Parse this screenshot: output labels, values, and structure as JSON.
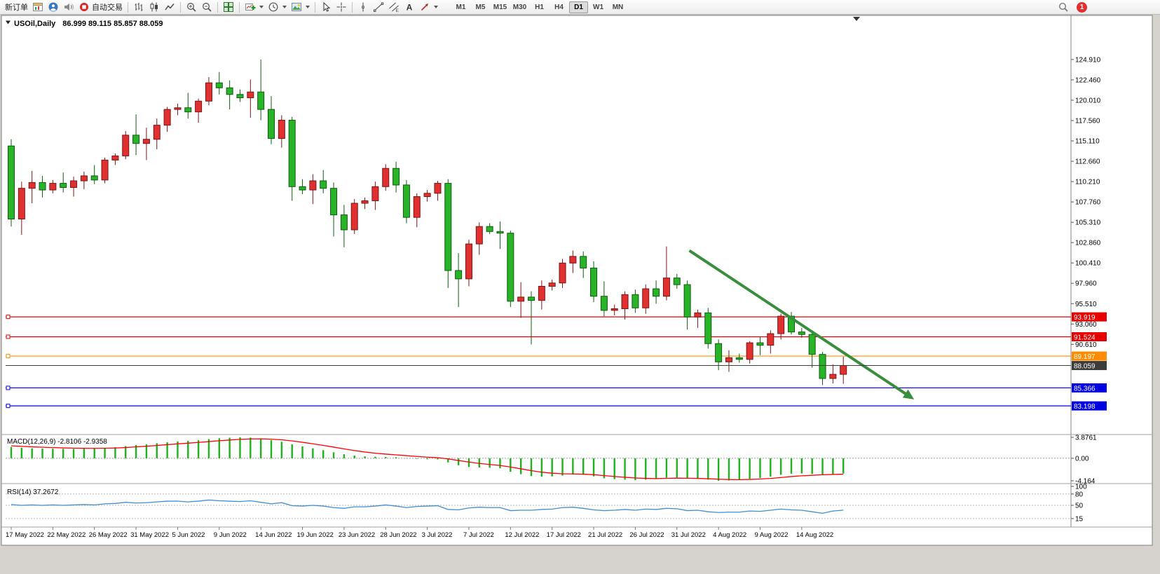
{
  "toolbar": {
    "new_order_label": "新订单",
    "autotrading_label": "自动交易",
    "timeframes": [
      "M1",
      "M5",
      "M15",
      "M30",
      "H1",
      "H4",
      "D1",
      "W1",
      "MN"
    ],
    "active_timeframe": "D1",
    "notification_count": "1",
    "icon_names": [
      "chart-window-icon",
      "profile-icon",
      "sound-icon",
      "autotrading-status-icon",
      "ohlc-bars-icon",
      "candlestick-icon",
      "line-chart-icon",
      "zoom-in-icon",
      "zoom-out-icon",
      "tile-windows-icon",
      "new-chart-icon",
      "clock-icon",
      "template-icon",
      "cursor-icon",
      "crosshair-icon",
      "vertical-line-icon",
      "trendline-icon",
      "equidistant-channel-icon",
      "text-label-icon",
      "arrows-tool-icon",
      "search-icon"
    ]
  },
  "chart": {
    "symbol_period": "USOil,Daily",
    "ohlc_text": "86.999 89.115 85.857 88.059",
    "macd_label": "MACD(12,26,9) -2.8106 -2.9358",
    "rsi_label": "RSI(14) 37.2672"
  },
  "chart_data": {
    "type": "candlestick",
    "symbol": "USOil",
    "timeframe": "Daily",
    "current": {
      "open": 86.999,
      "high": 89.115,
      "low": 85.857,
      "close": 88.059
    },
    "up_color": "#e03030",
    "down_color": "#29b329",
    "up_border": "#7a1515",
    "down_border": "#0f5c0f",
    "price_ticks": [
      "124.910",
      "122.460",
      "120.010",
      "117.560",
      "115.110",
      "112.660",
      "110.210",
      "107.760",
      "105.310",
      "102.860",
      "100.410",
      "97.960",
      "95.510",
      "93.060",
      "90.610"
    ],
    "x_labels": [
      {
        "bar": 0,
        "label": "17 May 2022"
      },
      {
        "bar": 4,
        "label": "22 May 2022"
      },
      {
        "bar": 8,
        "label": "26 May 2022"
      },
      {
        "bar": 12,
        "label": "31 May 2022"
      },
      {
        "bar": 16,
        "label": "5 Jun 2022"
      },
      {
        "bar": 20,
        "label": "9 Jun 2022"
      },
      {
        "bar": 24,
        "label": "14 Jun 2022"
      },
      {
        "bar": 28,
        "label": "19 Jun 2022"
      },
      {
        "bar": 32,
        "label": "23 Jun 2022"
      },
      {
        "bar": 36,
        "label": "28 Jun 2022"
      },
      {
        "bar": 40,
        "label": "3 Jul 2022"
      },
      {
        "bar": 44,
        "label": "7 Jul 2022"
      },
      {
        "bar": 48,
        "label": "12 Jul 2022"
      },
      {
        "bar": 52,
        "label": "17 Jul 2022"
      },
      {
        "bar": 56,
        "label": "21 Jul 2022"
      },
      {
        "bar": 60,
        "label": "26 Jul 2022"
      },
      {
        "bar": 64,
        "label": "31 Jul 2022"
      },
      {
        "bar": 68,
        "label": "4 Aug 2022"
      },
      {
        "bar": 72,
        "label": "9 Aug 2022"
      },
      {
        "bar": 76,
        "label": "14 Aug 2022"
      }
    ],
    "candles": {
      "columns": [
        "date",
        "open",
        "high",
        "low",
        "close"
      ],
      "rows": [
        [
          "17 May",
          114.5,
          115.3,
          104.8,
          105.7
        ],
        [
          "18 May",
          105.7,
          110.2,
          103.8,
          109.4
        ],
        [
          "19 May",
          109.4,
          111.5,
          107.6,
          110.1
        ],
        [
          "20 May",
          110.1,
          110.9,
          108.3,
          109.2
        ],
        [
          "22 May",
          109.2,
          110.4,
          108.8,
          110.0
        ],
        [
          "23 May",
          110.0,
          111.3,
          108.9,
          109.5
        ],
        [
          "24 May",
          109.5,
          110.8,
          108.4,
          110.3
        ],
        [
          "25 May",
          110.3,
          111.4,
          109.3,
          110.9
        ],
        [
          "26 May",
          110.9,
          112.2,
          109.9,
          110.4
        ],
        [
          "27 May",
          110.4,
          113.1,
          110.0,
          112.8
        ],
        [
          "29 May",
          112.8,
          113.6,
          112.2,
          113.3
        ],
        [
          "30 May",
          113.3,
          116.3,
          112.9,
          115.8
        ],
        [
          "31 May",
          115.8,
          118.3,
          113.4,
          114.8
        ],
        [
          "1 Jun",
          114.8,
          116.7,
          112.8,
          115.3
        ],
        [
          "2 Jun",
          115.3,
          117.8,
          114.1,
          117.0
        ],
        [
          "3 Jun",
          117.0,
          119.2,
          116.2,
          118.9
        ],
        [
          "5 Jun",
          118.9,
          119.6,
          118.2,
          119.1
        ],
        [
          "6 Jun",
          119.1,
          120.9,
          117.8,
          118.6
        ],
        [
          "7 Jun",
          118.6,
          120.2,
          117.3,
          119.9
        ],
        [
          "8 Jun",
          119.9,
          122.8,
          119.4,
          122.1
        ],
        [
          "9 Jun",
          122.1,
          123.4,
          120.7,
          121.5
        ],
        [
          "10 Jun",
          121.5,
          122.4,
          118.9,
          120.7
        ],
        [
          "12 Jun",
          120.7,
          121.3,
          119.8,
          120.3
        ],
        [
          "13 Jun",
          120.3,
          122.5,
          117.9,
          121.0
        ],
        [
          "14 Jun",
          121.0,
          124.91,
          117.6,
          118.9
        ],
        [
          "15 Jun",
          118.9,
          120.5,
          114.7,
          115.4
        ],
        [
          "16 Jun",
          115.4,
          118.2,
          114.3,
          117.6
        ],
        [
          "17 Jun",
          117.6,
          118.0,
          107.9,
          109.6
        ],
        [
          "19 Jun",
          109.6,
          110.5,
          108.7,
          109.2
        ],
        [
          "20 Jun",
          109.2,
          111.1,
          107.5,
          110.3
        ],
        [
          "21 Jun",
          110.3,
          111.6,
          108.8,
          109.4
        ],
        [
          "22 Jun",
          109.4,
          110.1,
          103.6,
          106.2
        ],
        [
          "23 Jun",
          106.2,
          107.4,
          102.3,
          104.4
        ],
        [
          "24 Jun",
          104.4,
          108.1,
          103.9,
          107.6
        ],
        [
          "26 Jun",
          107.6,
          108.3,
          106.9,
          107.9
        ],
        [
          "27 Jun",
          107.9,
          110.2,
          106.8,
          109.6
        ],
        [
          "28 Jun",
          109.6,
          112.3,
          109.1,
          111.8
        ],
        [
          "29 Jun",
          111.8,
          112.6,
          108.9,
          109.8
        ],
        [
          "30 Jun",
          109.8,
          110.4,
          105.2,
          105.9
        ],
        [
          "1 Jul",
          105.9,
          108.8,
          104.7,
          108.4
        ],
        [
          "3 Jul",
          108.4,
          109.2,
          107.8,
          108.8
        ],
        [
          "4 Jul",
          108.8,
          110.3,
          107.9,
          110.0
        ],
        [
          "5 Jul",
          110.0,
          110.5,
          97.4,
          99.5
        ],
        [
          "6 Jul",
          99.5,
          101.6,
          95.1,
          98.5
        ],
        [
          "7 Jul",
          98.5,
          103.2,
          97.6,
          102.7
        ],
        [
          "8 Jul",
          102.7,
          105.3,
          101.4,
          104.8
        ],
        [
          "10 Jul",
          104.8,
          105.2,
          103.9,
          104.2
        ],
        [
          "11 Jul",
          104.2,
          105.4,
          102.1,
          104.0
        ],
        [
          "12 Jul",
          104.0,
          104.3,
          95.1,
          95.8
        ],
        [
          "13 Jul",
          95.8,
          98.1,
          93.8,
          96.3
        ],
        [
          "14 Jul",
          96.3,
          97.0,
          90.6,
          95.9
        ],
        [
          "15 Jul",
          95.9,
          98.3,
          94.8,
          97.6
        ],
        [
          "17 Jul",
          97.6,
          98.4,
          97.1,
          98.0
        ],
        [
          "18 Jul",
          98.0,
          100.9,
          97.4,
          100.4
        ],
        [
          "19 Jul",
          100.4,
          101.9,
          99.2,
          101.2
        ],
        [
          "20 Jul",
          101.2,
          101.8,
          98.6,
          99.8
        ],
        [
          "21 Jul",
          99.8,
          100.6,
          95.7,
          96.4
        ],
        [
          "22 Jul",
          96.4,
          98.2,
          94.0,
          94.7
        ],
        [
          "24 Jul",
          94.7,
          95.4,
          94.1,
          94.9
        ],
        [
          "25 Jul",
          94.9,
          97.0,
          93.6,
          96.6
        ],
        [
          "26 Jul",
          96.6,
          97.2,
          94.4,
          95.0
        ],
        [
          "27 Jul",
          95.0,
          97.8,
          94.3,
          97.3
        ],
        [
          "28 Jul",
          97.3,
          98.3,
          95.5,
          96.4
        ],
        [
          "29 Jul",
          96.4,
          102.4,
          95.9,
          98.6
        ],
        [
          "31 Jul",
          98.6,
          99.1,
          97.3,
          97.8
        ],
        [
          "1 Aug",
          97.8,
          98.3,
          92.4,
          93.9
        ],
        [
          "2 Aug",
          93.9,
          94.8,
          92.6,
          94.4
        ],
        [
          "3 Aug",
          94.4,
          95.0,
          90.1,
          90.7
        ],
        [
          "4 Aug",
          90.7,
          91.2,
          87.5,
          88.5
        ],
        [
          "5 Aug",
          88.5,
          89.9,
          87.3,
          89.0
        ],
        [
          "7 Aug",
          89.0,
          89.5,
          88.4,
          88.8
        ],
        [
          "8 Aug",
          88.8,
          91.0,
          88.3,
          90.8
        ],
        [
          "9 Aug",
          90.8,
          91.5,
          89.3,
          90.5
        ],
        [
          "10 Aug",
          90.5,
          92.3,
          89.5,
          91.9
        ],
        [
          "11 Aug",
          91.9,
          94.3,
          91.2,
          94.0
        ],
        [
          "12 Aug",
          94.0,
          94.5,
          91.8,
          92.1
        ],
        [
          "14 Aug",
          92.1,
          92.6,
          91.4,
          91.8
        ],
        [
          "15 Aug",
          91.8,
          92.0,
          87.8,
          89.4
        ],
        [
          "16 Aug",
          89.4,
          89.7,
          85.7,
          86.5
        ],
        [
          "17 Aug",
          86.5,
          88.2,
          85.9,
          87.0
        ],
        [
          "18 Aug",
          86.999,
          89.115,
          85.857,
          88.059
        ]
      ]
    },
    "hlines": [
      {
        "price": 93.919,
        "label": "93.919",
        "color": "#e60000"
      },
      {
        "price": 91.524,
        "label": "91.524",
        "color": "#e60000"
      },
      {
        "price": 89.197,
        "label": "89.197",
        "color": "#ff8c00"
      },
      {
        "price": 85.366,
        "label": "85.366",
        "color": "#0000e0"
      },
      {
        "price": 83.198,
        "label": "83.198",
        "color": "#0000e0"
      }
    ],
    "price_line": {
      "price": 88.059,
      "label": "88.059",
      "color": "#3c3c3c"
    },
    "trend_arrow": {
      "from_bar": 65.2,
      "from_price": 101.9,
      "to_bar": 86.3,
      "to_price": 84.4,
      "color": "#388e3c"
    },
    "macd": {
      "name": "MACD(12,26,9)",
      "value_main": -2.8106,
      "value_signal": -2.9358,
      "scale_max": 3.8761,
      "scale_min": -4.164,
      "axis_ticks": [
        {
          "v": 3.8761,
          "label": "3.8761"
        },
        {
          "v": 0,
          "label": "0.00"
        },
        {
          "v": -4.164,
          "label": "-4.164"
        }
      ],
      "hist_color": "#1db31d",
      "signal_color": "#ff0000",
      "hist": [
        2.1,
        1.95,
        1.85,
        1.8,
        1.78,
        1.75,
        1.72,
        1.75,
        1.8,
        1.92,
        2.05,
        2.25,
        2.45,
        2.6,
        2.78,
        2.95,
        3.1,
        3.22,
        3.35,
        3.55,
        3.7,
        3.8,
        3.87,
        3.82,
        3.65,
        3.35,
        3.05,
        2.6,
        2.2,
        1.85,
        1.5,
        1.1,
        0.75,
        0.5,
        0.35,
        0.28,
        0.25,
        0.2,
        0.05,
        -0.1,
        -0.18,
        -0.2,
        -0.75,
        -1.3,
        -1.6,
        -1.7,
        -1.75,
        -1.85,
        -2.5,
        -2.95,
        -3.3,
        -3.4,
        -3.35,
        -3.2,
        -3.0,
        -3.05,
        -3.35,
        -3.7,
        -3.85,
        -3.95,
        -4.05,
        -3.95,
        -3.85,
        -3.6,
        -3.55,
        -3.75,
        -3.8,
        -3.95,
        -4.16,
        -4.1,
        -4.0,
        -3.8,
        -3.65,
        -3.4,
        -3.05,
        -2.85,
        -2.8,
        -2.9,
        -3.05,
        -2.95,
        -2.81
      ],
      "signal": [
        2.3,
        2.21,
        2.12,
        2.04,
        1.98,
        1.92,
        1.87,
        1.84,
        1.83,
        1.85,
        1.9,
        1.99,
        2.11,
        2.23,
        2.37,
        2.52,
        2.66,
        2.8,
        2.94,
        3.09,
        3.24,
        3.38,
        3.5,
        3.58,
        3.6,
        3.54,
        3.42,
        3.21,
        2.96,
        2.68,
        2.39,
        2.07,
        1.74,
        1.43,
        1.16,
        0.94,
        0.77,
        0.63,
        0.48,
        0.34,
        0.21,
        0.11,
        -0.11,
        -0.41,
        -0.7,
        -0.95,
        -1.15,
        -1.33,
        -1.62,
        -1.95,
        -2.29,
        -2.57,
        -2.76,
        -2.87,
        -2.9,
        -2.94,
        -3.04,
        -3.21,
        -3.37,
        -3.51,
        -3.65,
        -3.72,
        -3.75,
        -3.71,
        -3.67,
        -3.69,
        -3.72,
        -3.78,
        -3.87,
        -3.93,
        -3.95,
        -3.91,
        -3.84,
        -3.73,
        -3.56,
        -3.38,
        -3.24,
        -3.15,
        -3.05,
        -2.99,
        -2.94
      ]
    },
    "rsi": {
      "name": "RSI(14)",
      "value": 37.2672,
      "color": "#3f8fd2",
      "axis_ticks": [
        100,
        80,
        50,
        15
      ],
      "levels": [
        80,
        50,
        15
      ],
      "values": [
        52,
        50,
        51,
        50,
        51,
        50,
        51,
        52,
        51,
        54,
        55,
        58,
        56,
        57,
        59,
        61,
        61,
        59,
        61,
        64,
        62,
        61,
        60,
        62,
        58,
        54,
        57,
        49,
        48,
        50,
        48,
        44,
        42,
        46,
        46,
        48,
        51,
        48,
        44,
        47,
        48,
        49,
        39,
        38,
        43,
        45,
        44,
        44,
        36,
        37,
        37,
        39,
        40,
        44,
        45,
        42,
        38,
        36,
        37,
        39,
        37,
        40,
        39,
        42,
        41,
        36,
        37,
        33,
        31,
        32,
        32,
        35,
        34,
        37,
        40,
        38,
        37,
        33,
        29,
        35,
        37.27
      ]
    }
  }
}
